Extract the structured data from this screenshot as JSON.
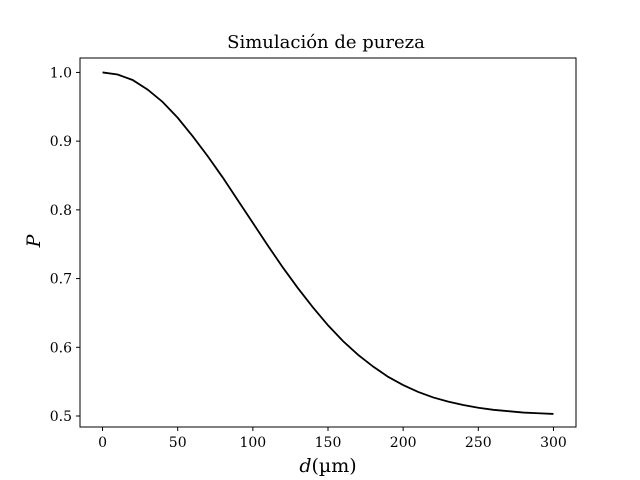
{
  "chart_data": {
    "type": "line",
    "title": "Simulación de pureza",
    "xlabel_var": "d",
    "xlabel_unit": "(µm)",
    "ylabel": "P",
    "xlim": [
      -15,
      315
    ],
    "ylim": [
      0.484,
      1.021
    ],
    "xticks": [
      0,
      50,
      100,
      150,
      200,
      250,
      300
    ],
    "xtick_labels": [
      "0",
      "50",
      "100",
      "150",
      "200",
      "250",
      "300"
    ],
    "yticks": [
      0.5,
      0.6,
      0.7,
      0.8,
      0.9,
      1.0
    ],
    "ytick_labels": [
      "0.5",
      "0.6",
      "0.7",
      "0.8",
      "0.9",
      "1.0"
    ],
    "grid": false,
    "line_color": "#000000",
    "series": [
      {
        "x": [
          0,
          10,
          20,
          30,
          40,
          50,
          60,
          70,
          80,
          90,
          100,
          110,
          120,
          130,
          140,
          150,
          160,
          170,
          180,
          190,
          200,
          210,
          220,
          230,
          240,
          250,
          260,
          270,
          280,
          290,
          300
        ],
        "y": [
          1.0,
          0.997,
          0.989,
          0.975,
          0.957,
          0.934,
          0.907,
          0.878,
          0.847,
          0.814,
          0.781,
          0.748,
          0.716,
          0.686,
          0.658,
          0.632,
          0.609,
          0.589,
          0.572,
          0.557,
          0.545,
          0.535,
          0.527,
          0.521,
          0.516,
          0.512,
          0.509,
          0.507,
          0.505,
          0.504,
          0.503
        ]
      }
    ]
  }
}
